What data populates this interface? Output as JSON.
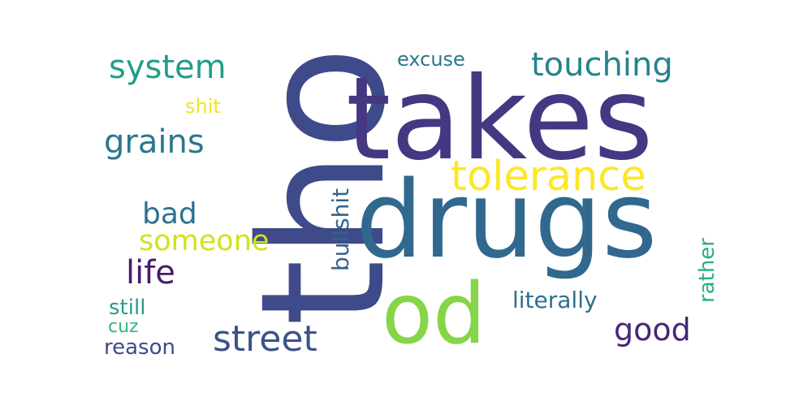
{
  "words": {
    "tho": {
      "text": "tho",
      "color": "#3e4a89"
    },
    "takes": {
      "text": "takes",
      "color": "#453781"
    },
    "drugs": {
      "text": "drugs",
      "color": "#31688e"
    },
    "od": {
      "text": "od",
      "color": "#86d549"
    },
    "tolerance": {
      "text": "tolerance",
      "color": "#fde725"
    },
    "touching": {
      "text": "touching",
      "color": "#26828e"
    },
    "system": {
      "text": "system",
      "color": "#1f9e89"
    },
    "grains": {
      "text": "grains",
      "color": "#2a788e"
    },
    "street": {
      "text": "street",
      "color": "#3b528b"
    },
    "bad": {
      "text": "bad",
      "color": "#2c728e"
    },
    "someone": {
      "text": "someone",
      "color": "#d2e21b"
    },
    "life": {
      "text": "life",
      "color": "#481a6c"
    },
    "good": {
      "text": "good",
      "color": "#482677"
    },
    "excuse": {
      "text": "excuse",
      "color": "#2a788e"
    },
    "shit": {
      "text": "shit",
      "color": "#f1e51d"
    },
    "bullshit": {
      "text": "bullshit",
      "color": "#33638d"
    },
    "rather": {
      "text": "rather",
      "color": "#29af7f"
    },
    "literally": {
      "text": "literally",
      "color": "#2d708e"
    },
    "still": {
      "text": "still",
      "color": "#2a9a8a"
    },
    "cuz": {
      "text": "cuz",
      "color": "#35b779"
    },
    "reason": {
      "text": "reason",
      "color": "#3e4a89"
    }
  }
}
